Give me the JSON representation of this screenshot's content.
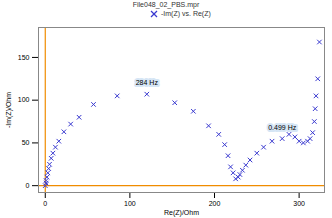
{
  "chart_data": {
    "type": "scatter",
    "title": "File048_02_PBS.mpr",
    "x_label": "Re(Z)/Ohm",
    "y_label": "-Im(Z)/Ohm",
    "xlim": [
      -8,
      330
    ],
    "ylim": [
      -8,
      185
    ],
    "xticks": [
      0,
      100,
      200,
      300
    ],
    "yticks": [
      0,
      50,
      100,
      150
    ],
    "grid": false,
    "legend": "top",
    "series": [
      {
        "name": "-Im(Z) vs. Re(Z)",
        "color": "#3a3ad0",
        "marker": "x",
        "x": [
          0,
          1,
          1,
          2,
          3,
          4,
          5,
          7,
          9,
          12,
          16,
          22,
          30,
          40,
          57,
          85,
          120,
          153,
          175,
          193,
          205,
          212,
          216,
          219,
          222,
          225,
          228,
          230,
          233,
          237,
          242,
          250,
          258,
          268,
          280,
          288,
          295,
          300,
          305,
          310,
          313,
          316,
          318,
          319,
          320,
          322,
          324
        ],
        "values": [
          0,
          3,
          6,
          10,
          15,
          20,
          25,
          32,
          38,
          45,
          52,
          63,
          72,
          80,
          95,
          105,
          107,
          97,
          87,
          70,
          60,
          48,
          35,
          22,
          15,
          8,
          10,
          13,
          18,
          24,
          30,
          38,
          45,
          52,
          55,
          60,
          57,
          52,
          50,
          52,
          55,
          62,
          75,
          90,
          105,
          125,
          168
        ]
      }
    ],
    "annotations": [
      {
        "text": "284 Hz",
        "x": 120,
        "y": 107
      },
      {
        "text": "0.499 Hz",
        "x": 280,
        "y": 55
      }
    ],
    "axis_color": "#f08c00"
  }
}
